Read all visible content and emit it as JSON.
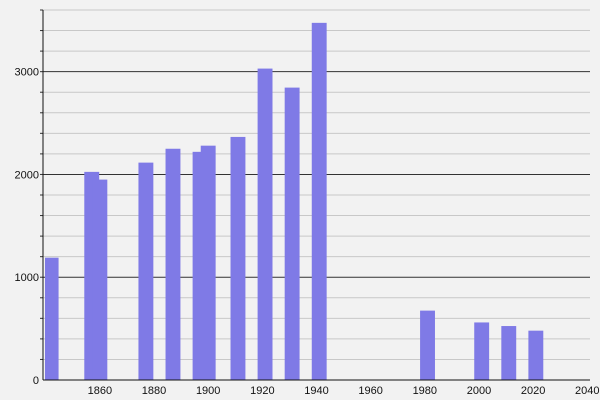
{
  "chart_data": {
    "type": "bar",
    "title": "",
    "xlabel": "",
    "ylabel": "",
    "x": [
      1842,
      1857,
      1860,
      1877,
      1887,
      1897,
      1900,
      1911,
      1921,
      1931,
      1941,
      1981,
      2001,
      2011,
      2021
    ],
    "values": [
      1190,
      2025,
      1950,
      2115,
      2250,
      2220,
      2280,
      2365,
      3030,
      2845,
      3475,
      675,
      560,
      525,
      480
    ],
    "xlim": [
      1839,
      2041
    ],
    "ylim": [
      0,
      3600
    ],
    "xticks": [
      "1860",
      "1880",
      "1900",
      "1920",
      "1940",
      "1960",
      "1980",
      "2000",
      "2020",
      "2040"
    ],
    "yticks": [
      "0",
      "1000",
      "2000",
      "3000"
    ],
    "minor_grid_step": 200,
    "grid": true,
    "bar_color": "#7f7ae6",
    "major_grid_color": "#333333",
    "minor_grid_color": "#c8c8c8"
  }
}
